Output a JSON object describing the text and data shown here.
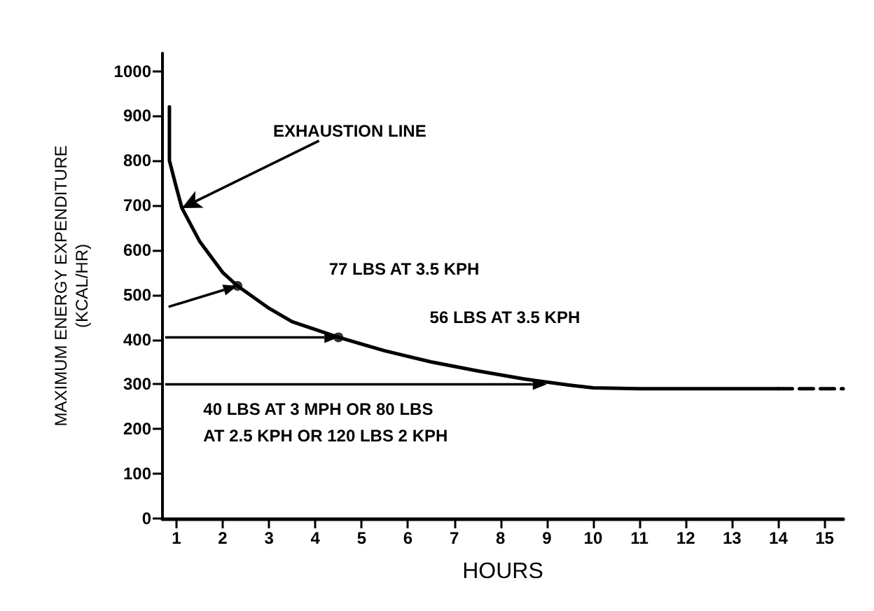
{
  "chart_data": {
    "type": "line",
    "xlabel": "HOURS",
    "ylabel": "MAXIMUM ENERGY EXPENDITURE\n(KCAL/HR)",
    "xlim": [
      0.7,
      15.4
    ],
    "ylim": [
      0,
      1040
    ],
    "xticks": [
      1,
      2,
      3,
      4,
      5,
      6,
      7,
      8,
      9,
      10,
      11,
      12,
      13,
      14,
      15
    ],
    "yticks": [
      0,
      100,
      200,
      300,
      400,
      500,
      600,
      700,
      800,
      900,
      1000
    ],
    "grid": false,
    "marker": "none",
    "series": [
      {
        "color": "#000000",
        "line_style": "solid",
        "x": [
          0.85,
          0.85,
          1.0,
          1.12,
          1.5,
          2,
          2.32,
          3,
          3.5,
          4.5,
          5.5,
          6.5,
          7.5,
          8.5,
          9.5,
          10,
          11,
          14
        ],
        "values": [
          920,
          800,
          740,
          694,
          620,
          550,
          520,
          470,
          440,
          405,
          375,
          350,
          330,
          312,
          298,
          292,
          290,
          290
        ]
      },
      {
        "color": "#000000",
        "line_style": "dashed",
        "x": [
          14,
          15.4
        ],
        "values": [
          290,
          290
        ]
      },
      {
        "type": "scatter",
        "color": "#000000",
        "marker": "circle",
        "x": [
          2.32,
          4.5
        ],
        "values": [
          520,
          405
        ]
      }
    ],
    "annotations": [
      {
        "text": "EXHAUSTION LINE",
        "x": 1.12,
        "y": 694
      },
      "77 LBS AT 3.5 KPH",
      "56 LBS AT 3.5 KPH",
      "40 LBS AT 3 MPH OR 80 LBS\nAT 2.5 KPH OR 120 LBS 2 KPH"
    ]
  }
}
